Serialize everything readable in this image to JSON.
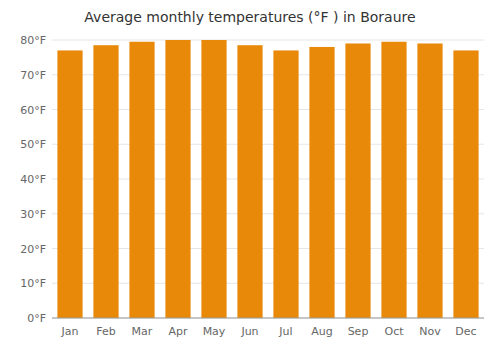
{
  "chart_data": {
    "type": "bar",
    "title": "Average monthly temperatures (°F ) in Boraure",
    "categories": [
      "Jan",
      "Feb",
      "Mar",
      "Apr",
      "May",
      "Jun",
      "Jul",
      "Aug",
      "Sep",
      "Oct",
      "Nov",
      "Dec"
    ],
    "values": [
      77.0,
      78.5,
      79.5,
      80.0,
      80.0,
      78.5,
      77.0,
      78.0,
      79.0,
      79.5,
      79.0,
      77.0
    ],
    "color": "#E8890A",
    "ylim": [
      0,
      80
    ],
    "yticks": [
      {
        "value": 0,
        "label": "0°F"
      },
      {
        "value": 10,
        "label": "10°F"
      },
      {
        "value": 20,
        "label": "20°F"
      },
      {
        "value": 30,
        "label": "30°F"
      },
      {
        "value": 40,
        "label": "40°F"
      },
      {
        "value": 50,
        "label": "50°F"
      },
      {
        "value": 60,
        "label": "60°F"
      },
      {
        "value": 70,
        "label": "70°F"
      },
      {
        "value": 80,
        "label": "80°F"
      }
    ],
    "grid": true
  }
}
